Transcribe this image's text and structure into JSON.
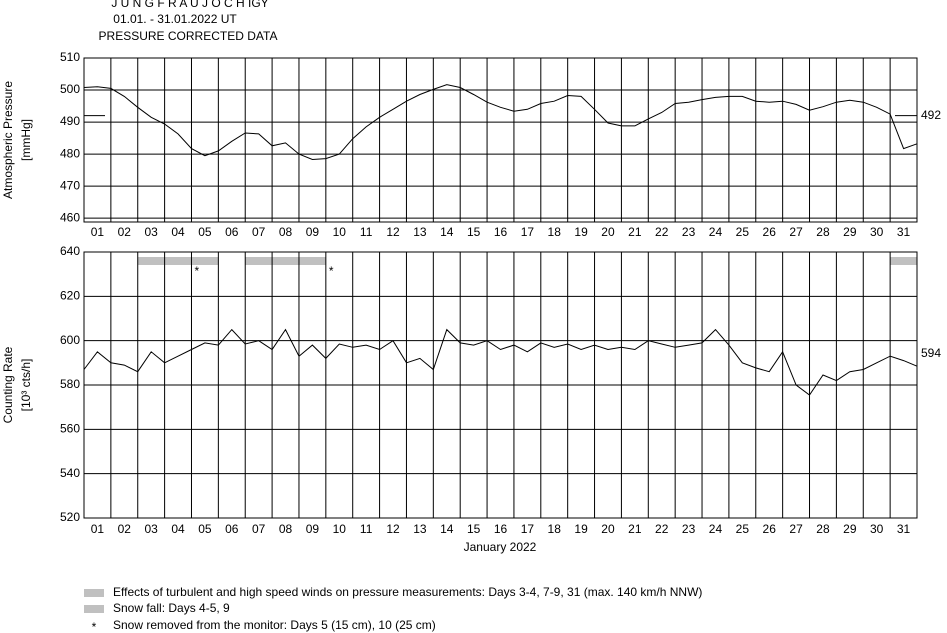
{
  "header": {
    "title": "J U N G F R A U J O C H IGY",
    "period": "01.01. - 31.01.2022 UT",
    "subtitle": "PRESSURE CORRECTED DATA"
  },
  "x_label": "January 2022",
  "chart_data": [
    {
      "type": "line",
      "y_label": [
        "Atmospheric Pressure",
        "[mmHg]"
      ],
      "categories": [
        "01",
        "02",
        "03",
        "04",
        "05",
        "06",
        "07",
        "08",
        "09",
        "10",
        "11",
        "12",
        "13",
        "14",
        "15",
        "16",
        "17",
        "18",
        "19",
        "20",
        "21",
        "22",
        "23",
        "24",
        "25",
        "26",
        "27",
        "28",
        "29",
        "30",
        "31"
      ],
      "xlim": [
        1,
        32
      ],
      "ylim": [
        458.8,
        510
      ],
      "yticks": [
        460,
        470,
        480,
        490,
        500,
        510
      ],
      "grid": true,
      "reference": {
        "value": 492,
        "label": "492",
        "side_marks": true
      },
      "x": [
        1,
        1.5,
        2,
        2.5,
        3,
        3.5,
        4,
        4.5,
        5,
        5.5,
        6,
        6.5,
        7,
        7.5,
        8,
        8.5,
        9,
        9.5,
        10,
        10.5,
        11,
        11.5,
        12,
        12.5,
        13,
        13.5,
        14,
        14.5,
        15,
        15.5,
        16,
        16.5,
        17,
        17.5,
        18,
        18.5,
        19,
        19.5,
        20,
        20.5,
        21,
        21.5,
        22,
        22.5,
        23,
        23.5,
        24,
        24.5,
        25,
        25.5,
        26,
        26.5,
        27,
        27.5,
        28,
        28.5,
        29,
        29.5,
        30,
        30.5,
        31,
        31.5,
        32
      ],
      "series": [
        {
          "name": "Atmospheric Pressure",
          "color": "#000000",
          "values": [
            500.8,
            501,
            500.5,
            498,
            494.6,
            491.5,
            489.4,
            486.3,
            481.7,
            479.5,
            481,
            484,
            486.6,
            486.3,
            482.6,
            483.5,
            480,
            478.3,
            478.6,
            480,
            484.8,
            488.5,
            491.5,
            494,
            496.5,
            498.6,
            500.2,
            501.7,
            500.8,
            498.6,
            496.2,
            494.6,
            493.4,
            494,
            495.8,
            496.5,
            498.3,
            498,
            494,
            489.7,
            488.8,
            488.8,
            491,
            493,
            495.8,
            496.2,
            497,
            497.7,
            498,
            498,
            496.5,
            496.2,
            496.5,
            495.5,
            493.7,
            494.8,
            496.2,
            496.8,
            496.2,
            494.6,
            492.5,
            481.7,
            483.2
          ]
        }
      ]
    },
    {
      "type": "line",
      "y_label": [
        "Counting Rate",
        "[10³ cts/h]"
      ],
      "categories": [
        "01",
        "02",
        "03",
        "04",
        "05",
        "06",
        "07",
        "08",
        "09",
        "10",
        "11",
        "12",
        "13",
        "14",
        "15",
        "16",
        "17",
        "18",
        "19",
        "20",
        "21",
        "22",
        "23",
        "24",
        "25",
        "26",
        "27",
        "28",
        "29",
        "30",
        "31"
      ],
      "xlim": [
        1,
        32
      ],
      "ylim": [
        520,
        640
      ],
      "yticks": [
        520,
        540,
        560,
        580,
        600,
        620,
        640
      ],
      "grid": true,
      "reference": {
        "value": 594,
        "label": "594",
        "side_marks": false
      },
      "bands": {
        "color": "#c0c0c0",
        "items": [
          {
            "start": 3,
            "end": 6
          },
          {
            "start": 7,
            "end": 10
          },
          {
            "start": 31,
            "end": 32
          }
        ]
      },
      "markers": {
        "symbol": "*",
        "x": [
          5.2,
          10.2
        ]
      },
      "x": [
        1,
        1.5,
        2,
        2.5,
        3,
        3.5,
        4,
        4.5,
        5,
        5.5,
        6,
        6.5,
        7,
        7.5,
        8,
        8.5,
        9,
        9.5,
        10,
        10.5,
        11,
        11.5,
        12,
        12.5,
        13,
        13.5,
        14,
        14.5,
        15,
        15.5,
        16,
        16.5,
        17,
        17.5,
        18,
        18.5,
        19,
        19.5,
        20,
        20.5,
        21,
        21.5,
        22,
        22.5,
        23,
        23.5,
        24,
        24.5,
        25,
        25.5,
        26,
        26.5,
        27,
        27.5,
        28,
        28.5,
        29,
        29.5,
        30,
        30.5,
        31,
        31.5,
        32
      ],
      "series": [
        {
          "name": "Counting Rate",
          "color": "#000000",
          "values": [
            587,
            595,
            590,
            589,
            586,
            595,
            590,
            593,
            596,
            599,
            598,
            605,
            598.5,
            600,
            596,
            605,
            593,
            598,
            592,
            598.5,
            597,
            598,
            596,
            600,
            590,
            592,
            587,
            605,
            599,
            598,
            600,
            596,
            598,
            595,
            599,
            597,
            598.5,
            596,
            598,
            596,
            597,
            596,
            600,
            598.5,
            597,
            598,
            599,
            605,
            598,
            590,
            587.7,
            586,
            595,
            580,
            575.5,
            584.5,
            582,
            586,
            587,
            590,
            593,
            591,
            588.5
          ]
        }
      ]
    }
  ],
  "notes": [
    {
      "swatch": "#c0c0c0",
      "text": "Effects of turbulent and high speed winds on pressure measurements: Days 3-4, 7-9, 31 (max. 140 km/h NNW)"
    },
    {
      "swatch": "#c0c0c0",
      "text": "Snow fall: Days 4-5, 9"
    },
    {
      "symbol": "*",
      "text": "Snow removed from the monitor: Days 5 (15 cm), 10 (25 cm)"
    }
  ]
}
